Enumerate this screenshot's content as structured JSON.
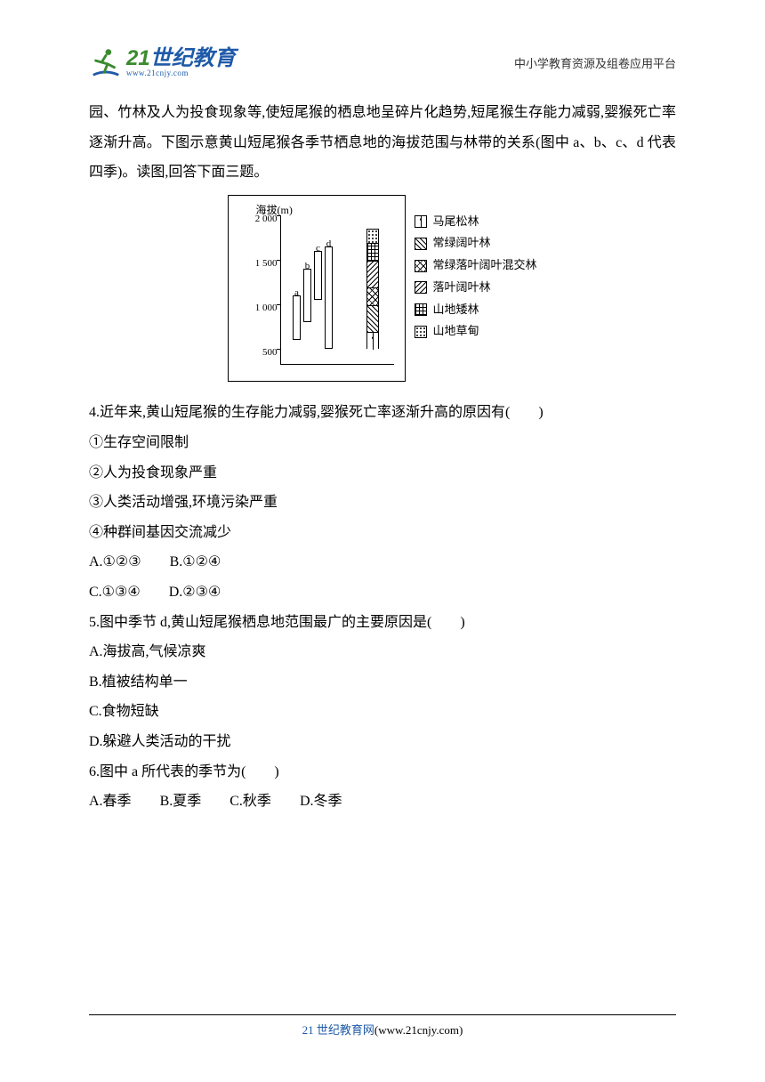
{
  "header": {
    "logo_green_text": "21",
    "logo_blue_text": "世纪教育",
    "logo_url": "www.21cnjy.com",
    "title": "中小学教育资源及组卷应用平台"
  },
  "colors": {
    "text": "#000000",
    "green": "#3a8a2e",
    "blue": "#1e5aa8",
    "background": "#ffffff",
    "border": "#000000"
  },
  "intro": {
    "para": "园、竹林及人为投食现象等,使短尾猴的栖息地呈碎片化趋势,短尾猴生存能力减弱,婴猴死亡率逐渐升高。下图示意黄山短尾猴各季节栖息地的海拔范围与林带的关系(图中 a、b、c、d 代表四季)。读图,回答下面三题。"
  },
  "figure": {
    "y_axis_label": "海拔(m)",
    "y_ticks": [
      500,
      1000,
      1500,
      2000
    ],
    "y_range": [
      300,
      2000
    ],
    "bars": [
      {
        "label": "a",
        "lo": 600,
        "hi": 1100,
        "x": 72
      },
      {
        "label": "b",
        "lo": 800,
        "hi": 1400,
        "x": 84
      },
      {
        "label": "c",
        "lo": 1050,
        "hi": 1600,
        "x": 96
      },
      {
        "label": "d",
        "lo": 500,
        "hi": 1650,
        "x": 108
      }
    ],
    "vegetation_column": {
      "x": 155,
      "segments": [
        {
          "lo": 500,
          "hi": 700,
          "pattern": "pat-tree"
        },
        {
          "lo": 700,
          "hi": 1000,
          "pattern": "pat-diag"
        },
        {
          "lo": 1000,
          "hi": 1200,
          "pattern": "pat-cross"
        },
        {
          "lo": 1200,
          "hi": 1500,
          "pattern": "pat-diag2"
        },
        {
          "lo": 1500,
          "hi": 1700,
          "pattern": "pat-check"
        },
        {
          "lo": 1700,
          "hi": 1850,
          "pattern": "pat-dots"
        }
      ]
    },
    "legend": [
      {
        "pattern": "pat-tree",
        "label": "马尾松林"
      },
      {
        "pattern": "pat-diag",
        "label": "常绿阔叶林"
      },
      {
        "pattern": "pat-cross",
        "label": "常绿落叶阔叶混交林"
      },
      {
        "pattern": "pat-diag2",
        "label": "落叶阔叶林"
      },
      {
        "pattern": "pat-check",
        "label": "山地矮林"
      },
      {
        "pattern": "pat-dots",
        "label": "山地草甸"
      }
    ]
  },
  "questions": {
    "q4": {
      "stem": "4.近年来,黄山短尾猴的生存能力减弱,婴猴死亡率逐渐升高的原因有(　　)",
      "i1": "①生存空间限制",
      "i2": "②人为投食现象严重",
      "i3": "③人类活动增强,环境污染严重",
      "i4": "④种群间基因交流减少",
      "A": "A.①②③",
      "B": "B.①②④",
      "C": "C.①③④",
      "D": "D.②③④"
    },
    "q5": {
      "stem": "5.图中季节 d,黄山短尾猴栖息地范围最广的主要原因是(　　)",
      "A": "A.海拔高,气候凉爽",
      "B": "B.植被结构单一",
      "C": "C.食物短缺",
      "D": "D.躲避人类活动的干扰"
    },
    "q6": {
      "stem": "6.图中 a 所代表的季节为(　　)",
      "A": "A.春季",
      "B": "B.夏季",
      "C": "C.秋季",
      "D": "D.冬季"
    }
  },
  "footer": {
    "blue": "21 世纪教育网",
    "rest": "(www.21cnjy.com)"
  }
}
